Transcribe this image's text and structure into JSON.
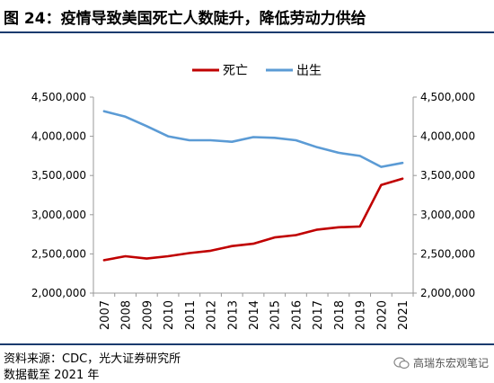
{
  "header": {
    "title": "图 24：疫情导致美国死亡人数陡升，降低劳动力供给"
  },
  "footer": {
    "source": "资料来源：CDC，光大证券研究所",
    "date_note": "数据截至 2021 年",
    "watermark": "高瑞东宏观笔记"
  },
  "chart_data": {
    "type": "line",
    "title": "",
    "xlabel": "",
    "ylabel": "",
    "x": [
      "2007",
      "2008",
      "2009",
      "2010",
      "2011",
      "2012",
      "2013",
      "2014",
      "2015",
      "2016",
      "2017",
      "2018",
      "2019",
      "2020",
      "2021"
    ],
    "ylim": [
      2000000,
      4500000
    ],
    "yticks": [
      2000000,
      2500000,
      3000000,
      3500000,
      4000000,
      4500000
    ],
    "ytick_labels": [
      "2,000,000",
      "2,500,000",
      "3,000,000",
      "3,500,000",
      "4,000,000",
      "4,500,000"
    ],
    "legend_position": "top-center",
    "grid": false,
    "series": [
      {
        "name": "死亡",
        "color": "#c00000",
        "values": [
          2420000,
          2470000,
          2440000,
          2470000,
          2510000,
          2540000,
          2600000,
          2630000,
          2710000,
          2740000,
          2810000,
          2840000,
          2850000,
          3380000,
          3460000
        ]
      },
      {
        "name": "出生",
        "color": "#5b9bd5",
        "values": [
          4320000,
          4250000,
          4130000,
          4000000,
          3950000,
          3950000,
          3930000,
          3990000,
          3980000,
          3950000,
          3860000,
          3790000,
          3750000,
          3610000,
          3660000
        ]
      }
    ]
  }
}
